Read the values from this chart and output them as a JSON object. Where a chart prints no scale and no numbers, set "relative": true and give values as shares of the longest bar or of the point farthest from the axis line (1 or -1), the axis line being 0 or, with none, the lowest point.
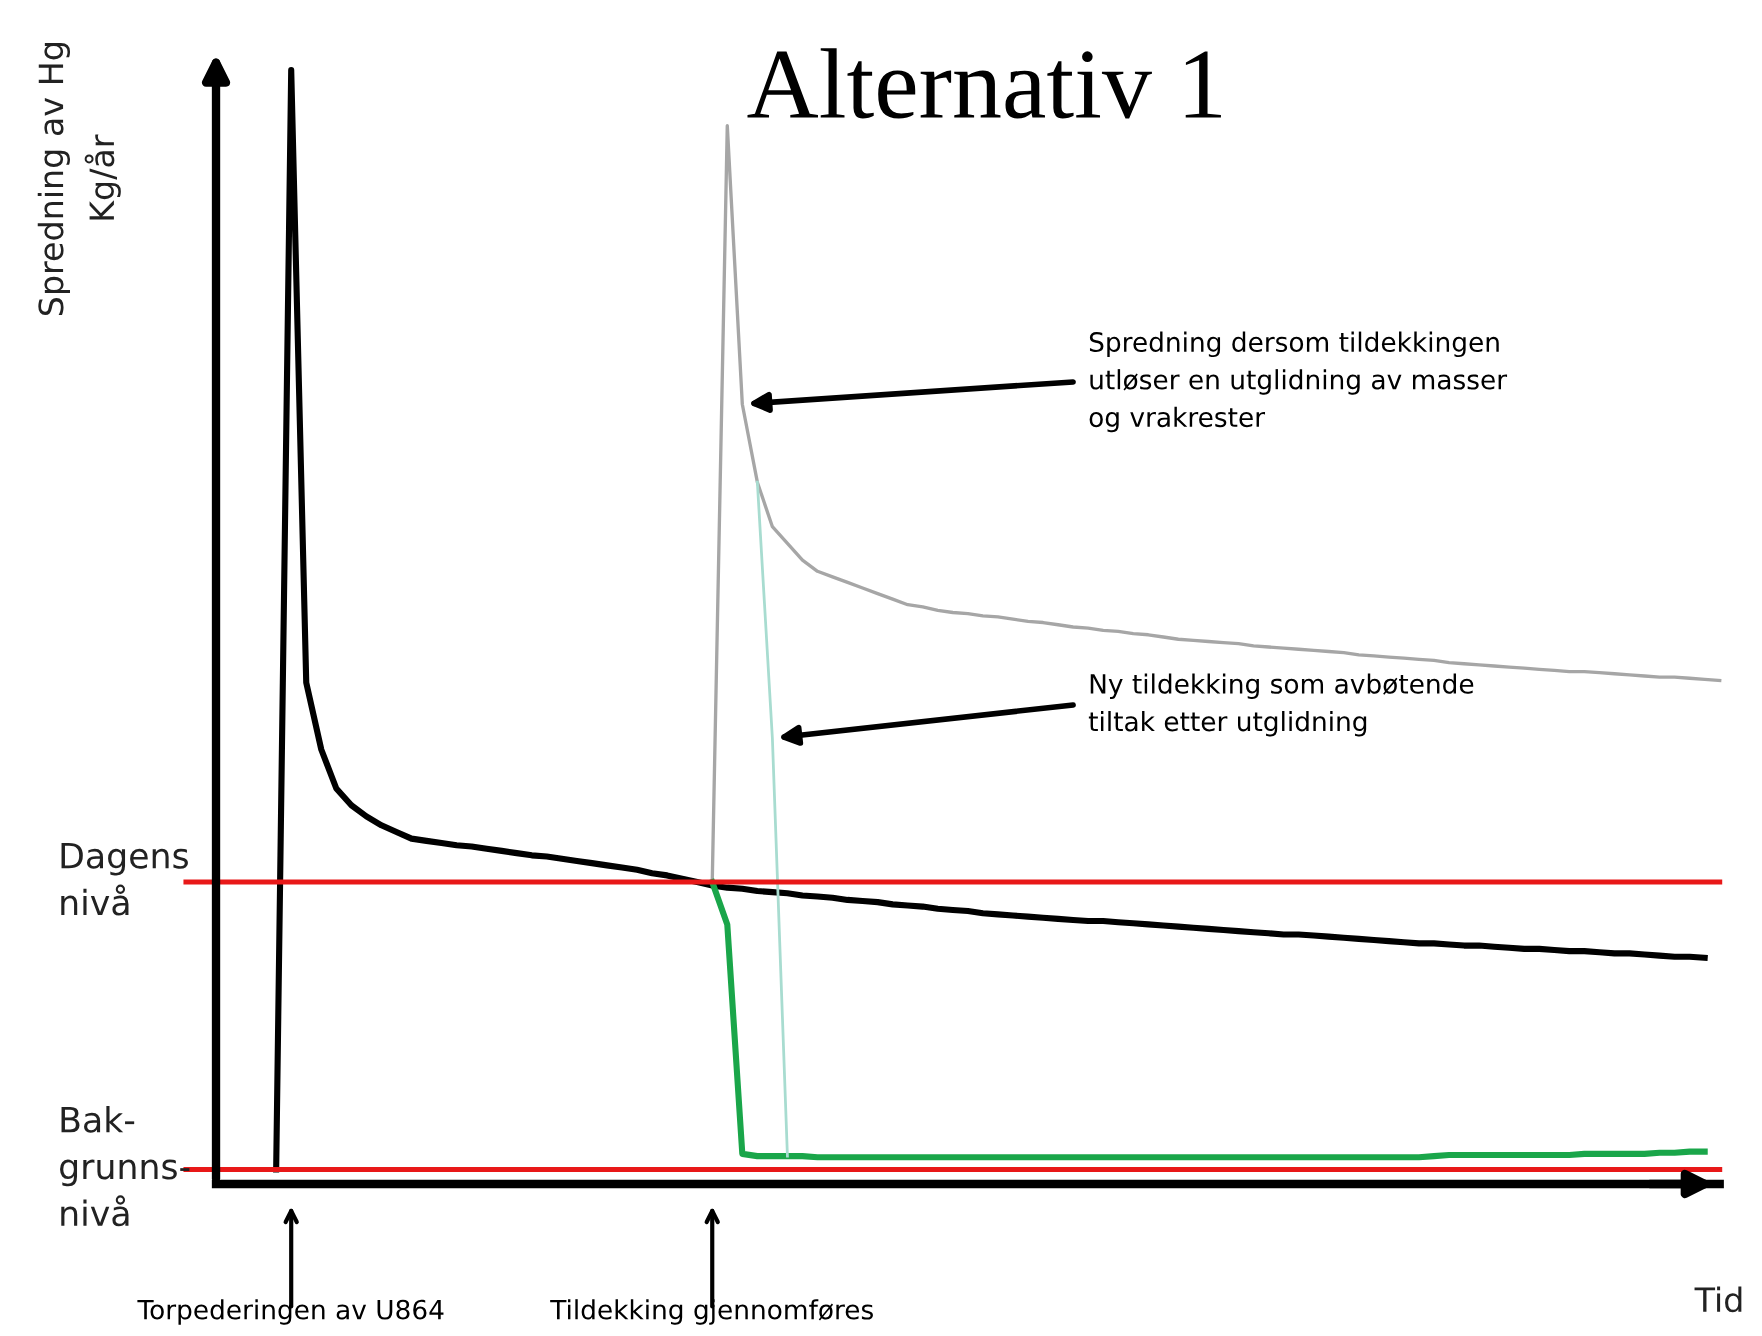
{
  "chart_data": {
    "type": "line",
    "relative": true,
    "title": "Alternativ 1",
    "xlabel": "Tid",
    "ylabel": "Spredning av Hg\nKg/år",
    "legend": false,
    "marker": "none",
    "line_style": "solid",
    "categories": [
      null,
      null,
      null,
      null,
      null,
      null,
      null,
      null,
      null,
      null,
      null,
      null,
      null,
      null,
      null,
      null,
      null,
      null,
      null,
      null,
      null,
      null,
      null,
      null,
      null,
      null,
      null,
      null,
      null,
      null,
      null,
      null,
      null,
      null,
      null,
      null,
      null,
      null,
      null,
      null,
      null,
      null,
      null,
      null,
      null,
      null,
      null,
      null,
      null,
      null,
      null,
      null,
      null,
      null,
      null,
      null,
      null,
      null,
      null,
      null,
      null,
      null,
      null,
      null,
      null,
      null,
      null,
      null,
      null,
      null,
      null,
      null,
      null,
      null,
      null,
      null,
      null,
      null,
      null,
      null,
      null,
      null,
      null,
      null,
      null,
      null,
      null,
      null,
      null,
      null,
      null,
      null,
      null,
      null,
      null,
      null,
      null,
      null,
      null,
      null,
      null
    ],
    "series": [
      {
        "color": "#000000",
        "values": [
          null,
          null,
          null,
          null,
          0.013,
          1.0,
          0.45,
          0.39,
          0.355,
          0.34,
          0.33,
          0.322,
          0.316,
          0.31,
          0.308,
          0.306,
          0.304,
          0.303,
          0.301,
          0.299,
          0.297,
          0.295,
          0.294,
          0.292,
          0.29,
          0.288,
          0.286,
          0.284,
          0.282,
          0.279,
          0.277,
          0.274,
          0.271,
          0.268,
          0.266,
          0.265,
          0.263,
          0.262,
          0.261,
          0.259,
          0.258,
          0.257,
          0.255,
          0.254,
          0.253,
          0.251,
          0.25,
          0.249,
          0.247,
          0.246,
          0.245,
          0.243,
          0.242,
          0.241,
          0.24,
          0.239,
          0.238,
          0.237,
          0.236,
          0.236,
          0.235,
          0.234,
          0.233,
          0.232,
          0.231,
          0.23,
          0.229,
          0.228,
          0.227,
          0.226,
          0.225,
          0.224,
          0.224,
          0.223,
          0.222,
          0.221,
          0.22,
          0.219,
          0.218,
          0.217,
          0.216,
          0.216,
          0.215,
          0.214,
          0.214,
          0.213,
          0.212,
          0.211,
          0.211,
          0.21,
          0.209,
          0.209,
          0.208,
          0.207,
          0.207,
          0.206,
          0.205,
          0.204,
          0.204,
          0.203,
          null
        ]
      },
      {
        "color": "#a6a6a6",
        "values": [
          null,
          null,
          null,
          null,
          null,
          null,
          null,
          null,
          null,
          null,
          null,
          null,
          null,
          null,
          null,
          null,
          null,
          null,
          null,
          null,
          null,
          null,
          null,
          null,
          null,
          null,
          null,
          null,
          null,
          null,
          null,
          null,
          null,
          0.271,
          0.95,
          0.7,
          0.63,
          0.59,
          0.575,
          0.56,
          0.55,
          0.545,
          0.54,
          0.535,
          0.53,
          0.525,
          0.52,
          0.518,
          0.515,
          0.513,
          0.512,
          0.51,
          0.509,
          0.507,
          0.505,
          0.504,
          0.502,
          0.5,
          0.499,
          0.497,
          0.496,
          0.494,
          0.493,
          0.491,
          0.489,
          0.488,
          0.487,
          0.486,
          0.485,
          0.483,
          0.482,
          0.481,
          0.48,
          0.479,
          0.478,
          0.477,
          0.475,
          0.474,
          0.473,
          0.472,
          0.471,
          0.47,
          0.468,
          0.467,
          0.466,
          0.465,
          0.464,
          0.463,
          0.462,
          0.461,
          0.46,
          0.46,
          0.459,
          0.458,
          0.457,
          0.456,
          0.455,
          0.455,
          0.454,
          0.453,
          0.452
        ]
      },
      {
        "color": "#1aa64a",
        "values": [
          null,
          null,
          null,
          null,
          null,
          null,
          null,
          null,
          null,
          null,
          null,
          null,
          null,
          null,
          null,
          null,
          null,
          null,
          null,
          null,
          null,
          null,
          null,
          null,
          null,
          null,
          null,
          null,
          null,
          null,
          null,
          null,
          null,
          0.271,
          0.233,
          0.027,
          0.025,
          0.025,
          0.025,
          0.025,
          0.024,
          0.024,
          0.024,
          0.024,
          0.024,
          0.024,
          0.024,
          0.024,
          0.024,
          0.024,
          0.024,
          0.024,
          0.024,
          0.024,
          0.024,
          0.024,
          0.024,
          0.024,
          0.024,
          0.024,
          0.024,
          0.024,
          0.024,
          0.024,
          0.024,
          0.024,
          0.024,
          0.024,
          0.024,
          0.024,
          0.024,
          0.024,
          0.024,
          0.024,
          0.024,
          0.024,
          0.024,
          0.024,
          0.024,
          0.024,
          0.024,
          0.025,
          0.026,
          0.026,
          0.026,
          0.026,
          0.026,
          0.026,
          0.026,
          0.026,
          0.026,
          0.027,
          0.027,
          0.027,
          0.027,
          0.027,
          0.028,
          0.028,
          0.029,
          0.029,
          null
        ]
      },
      {
        "color": "#a8dcd0",
        "values": [
          null,
          null,
          null,
          null,
          null,
          null,
          null,
          null,
          null,
          null,
          null,
          null,
          null,
          null,
          null,
          null,
          null,
          null,
          null,
          null,
          null,
          null,
          null,
          null,
          null,
          null,
          null,
          null,
          null,
          null,
          null,
          null,
          null,
          null,
          null,
          null,
          0.63,
          0.4,
          0.025,
          null,
          null,
          null,
          null,
          null,
          null,
          null,
          null,
          null,
          null,
          null,
          null,
          null,
          null,
          null,
          null,
          null,
          null,
          null,
          null,
          null,
          null,
          null,
          null,
          null,
          null,
          null,
          null,
          null,
          null,
          null,
          null,
          null,
          null,
          null,
          null,
          null,
          null,
          null,
          null,
          null,
          null,
          null,
          null,
          null,
          null,
          null,
          null,
          null,
          null,
          null,
          null,
          null,
          null,
          null,
          null,
          null,
          null,
          null,
          null,
          null,
          null
        ]
      }
    ],
    "ref_lines": [
      {
        "axis": "y",
        "value": 0.271,
        "label": "Dagens\nnivå",
        "color": "#e81818"
      },
      {
        "axis": "y",
        "value": 0.013,
        "label": "Bak-\ngrunns-\nnivå",
        "color": "#e81818"
      }
    ],
    "annotations": [
      "Spredning dersom tildekkingen\nutløser en utglidning av masser\nog vrakrester",
      "Ny tildekking som avbøtende\ntiltak etter utglidning",
      "Torpederingen av U864",
      "Tildekking gjennomføres"
    ]
  }
}
